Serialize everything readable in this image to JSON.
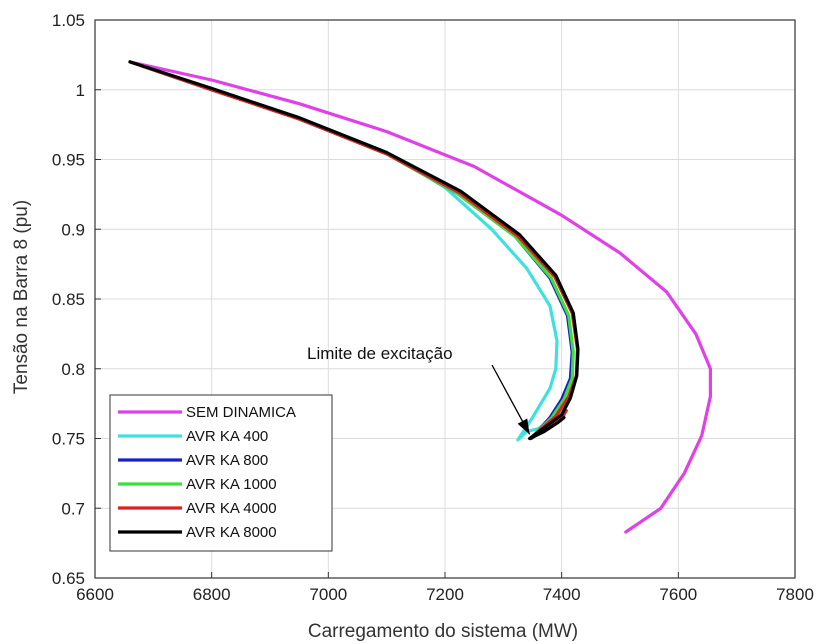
{
  "chart_data": {
    "type": "line",
    "xlabel": "Carregamento do sistema (MW)",
    "ylabel": "Tensão na Barra 8 (pu)",
    "xlim": [
      6600,
      7800
    ],
    "ylim": [
      0.65,
      1.05
    ],
    "xticks": [
      6600,
      6800,
      7000,
      7200,
      7400,
      7600,
      7800
    ],
    "yticks": [
      0.65,
      0.7,
      0.75,
      0.8,
      0.85,
      0.9,
      0.95,
      1,
      1.05
    ],
    "xtick_labels": [
      "6600",
      "6800",
      "7000",
      "7200",
      "7400",
      "7600",
      "7800"
    ],
    "ytick_labels": [
      "0.65",
      "0.7",
      "0.75",
      "0.8",
      "0.85",
      "0.9",
      "0.95",
      "1",
      "1.05"
    ],
    "grid": true,
    "legend_position": "bottom-left",
    "annotation": {
      "text": "Limite de excitação",
      "arrow_to": [
        7345,
        0.753
      ]
    },
    "series": [
      {
        "name": "SEM DINAMICA",
        "color": "#e040e8",
        "points": [
          [
            6660,
            1.02
          ],
          [
            6800,
            1.007
          ],
          [
            6950,
            0.99
          ],
          [
            7100,
            0.97
          ],
          [
            7250,
            0.945
          ],
          [
            7400,
            0.91
          ],
          [
            7500,
            0.883
          ],
          [
            7580,
            0.855
          ],
          [
            7630,
            0.825
          ],
          [
            7655,
            0.8
          ],
          [
            7655,
            0.78
          ],
          [
            7640,
            0.752
          ],
          [
            7610,
            0.725
          ],
          [
            7570,
            0.7
          ],
          [
            7510,
            0.683
          ]
        ]
      },
      {
        "name": "AVR KA 400",
        "color": "#3ee0e0",
        "points": [
          [
            6660,
            1.02
          ],
          [
            6800,
            1.0
          ],
          [
            6950,
            0.98
          ],
          [
            7100,
            0.955
          ],
          [
            7200,
            0.93
          ],
          [
            7280,
            0.9
          ],
          [
            7340,
            0.872
          ],
          [
            7380,
            0.845
          ],
          [
            7392,
            0.82
          ],
          [
            7390,
            0.8
          ],
          [
            7380,
            0.786
          ],
          [
            7350,
            0.765
          ],
          [
            7325,
            0.749
          ],
          [
            7340,
            0.755
          ],
          [
            7360,
            0.757
          ],
          [
            7370,
            0.76
          ]
        ]
      },
      {
        "name": "AVR KA 800",
        "color": "#1a20c8",
        "points": [
          [
            6660,
            1.02
          ],
          [
            6800,
            1.0
          ],
          [
            6950,
            0.979
          ],
          [
            7100,
            0.954
          ],
          [
            7220,
            0.926
          ],
          [
            7320,
            0.895
          ],
          [
            7380,
            0.865
          ],
          [
            7410,
            0.838
          ],
          [
            7418,
            0.812
          ],
          [
            7415,
            0.793
          ],
          [
            7400,
            0.778
          ],
          [
            7380,
            0.765
          ],
          [
            7348,
            0.75
          ],
          [
            7370,
            0.757
          ],
          [
            7395,
            0.765
          ],
          [
            7405,
            0.776
          ]
        ]
      },
      {
        "name": "AVR KA 1000",
        "color": "#3ce03c",
        "points": [
          [
            6660,
            1.02
          ],
          [
            6800,
            1.0
          ],
          [
            6950,
            0.979
          ],
          [
            7100,
            0.954
          ],
          [
            7220,
            0.926
          ],
          [
            7320,
            0.895
          ],
          [
            7382,
            0.865
          ],
          [
            7412,
            0.838
          ],
          [
            7420,
            0.812
          ],
          [
            7418,
            0.793
          ],
          [
            7404,
            0.778
          ],
          [
            7383,
            0.765
          ],
          [
            7346,
            0.75
          ],
          [
            7368,
            0.756
          ],
          [
            7392,
            0.764
          ],
          [
            7402,
            0.772
          ]
        ]
      },
      {
        "name": "AVR KA 4000",
        "color": "#dd2020",
        "points": [
          [
            6660,
            1.02
          ],
          [
            6800,
            1.0
          ],
          [
            6950,
            0.979
          ],
          [
            7100,
            0.954
          ],
          [
            7225,
            0.926
          ],
          [
            7325,
            0.895
          ],
          [
            7388,
            0.866
          ],
          [
            7418,
            0.84
          ],
          [
            7427,
            0.814
          ],
          [
            7425,
            0.795
          ],
          [
            7412,
            0.78
          ],
          [
            7390,
            0.766
          ],
          [
            7346,
            0.75
          ],
          [
            7372,
            0.757
          ],
          [
            7398,
            0.763
          ],
          [
            7408,
            0.77
          ]
        ]
      },
      {
        "name": "AVR KA 8000",
        "color": "#000000",
        "points": [
          [
            6660,
            1.02
          ],
          [
            6800,
            1.001
          ],
          [
            6950,
            0.98
          ],
          [
            7100,
            0.955
          ],
          [
            7228,
            0.927
          ],
          [
            7328,
            0.896
          ],
          [
            7390,
            0.867
          ],
          [
            7420,
            0.84
          ],
          [
            7428,
            0.814
          ],
          [
            7426,
            0.795
          ],
          [
            7415,
            0.779
          ],
          [
            7400,
            0.767
          ],
          [
            7345,
            0.75
          ],
          [
            7370,
            0.755
          ],
          [
            7392,
            0.761
          ],
          [
            7404,
            0.765
          ]
        ]
      }
    ]
  }
}
